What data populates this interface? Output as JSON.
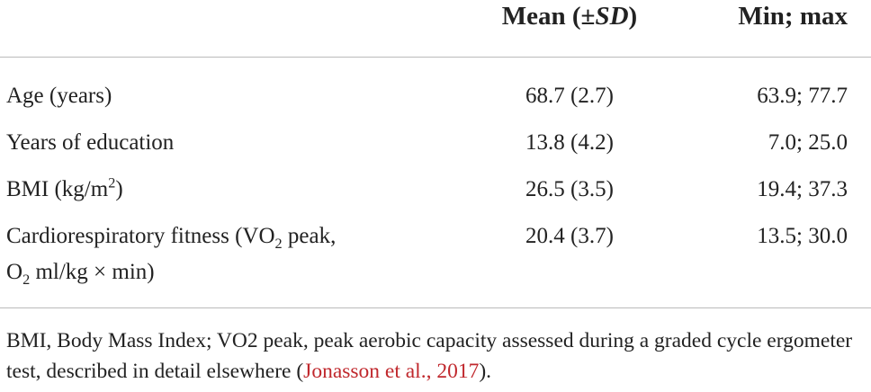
{
  "header": {
    "columns": [
      [
        {
          "text": "Mean (±"
        },
        {
          "text": "SD",
          "italic": true
        },
        {
          "text": ")"
        }
      ],
      [
        {
          "text": "Min; max"
        }
      ]
    ]
  },
  "table": {
    "rows": [
      {
        "label": [
          {
            "text": "Age (years)"
          }
        ],
        "mean": "68.7 (2.7)",
        "range": "63.9; 77.7"
      },
      {
        "label": [
          {
            "text": "Years of education"
          }
        ],
        "mean": "13.8 (4.2)",
        "range": "7.0; 25.0"
      },
      {
        "label": [
          {
            "text": "BMI (kg/m"
          },
          {
            "text": "2",
            "sup": true
          },
          {
            "text": ")"
          }
        ],
        "mean": "26.5 (3.5)",
        "range": "19.4; 37.3"
      },
      {
        "label": [
          {
            "text": "Cardiorespiratory fitness (VO"
          },
          {
            "text": "2",
            "sub": true
          },
          {
            "text": " peak,"
          },
          {
            "text": "O",
            "newline": true
          },
          {
            "text": "2",
            "sub": true
          },
          {
            "text": " ml/kg × min)"
          }
        ],
        "mean": "20.4 (3.7)",
        "range": "13.5; 30.0"
      }
    ]
  },
  "footnote": [
    {
      "text": "BMI, Body Mass Index; VO2 peak, peak aerobic capacity assessed during a graded cycle ergometer test, described in detail elsewhere ("
    },
    {
      "text": "Jonasson et al., 2017",
      "link": true
    },
    {
      "text": ")."
    }
  ]
}
